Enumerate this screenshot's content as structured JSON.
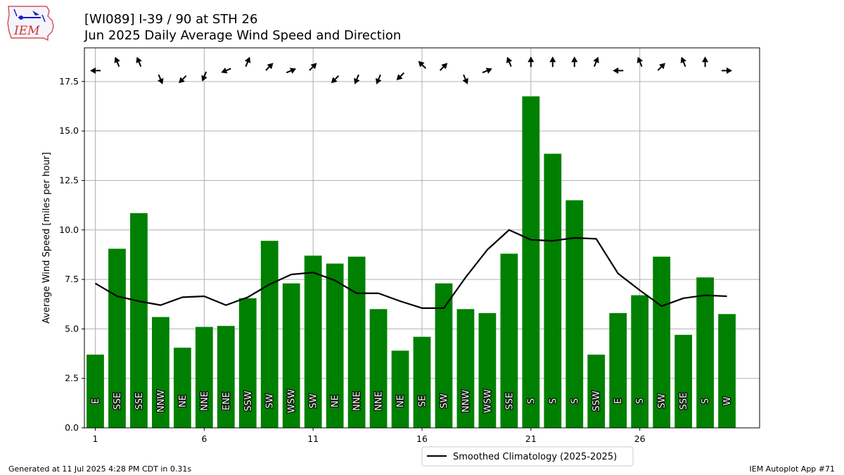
{
  "header": {
    "title_line1": "[WI089] I-39 / 90 at STH 26",
    "title_line2": "Jun 2025 Daily Average Wind Speed and Direction",
    "logo_text": "IEM"
  },
  "footer": {
    "generated": "Generated at 11 Jul 2025 4:28 PM CDT in 0.31s",
    "app": "IEM Autoplot App #71"
  },
  "colors": {
    "bar": "#008000",
    "line": "#000000",
    "grid": "#b0b0b0",
    "logo": "#cc3333"
  },
  "chart_data": {
    "type": "bar",
    "ylabel": "Average Wind Speed [miles per hour]",
    "ylim": [
      0,
      19.2
    ],
    "xlim": [
      0.5,
      31.5
    ],
    "x_ticks": [
      1,
      6,
      11,
      16,
      21,
      26
    ],
    "y_ticks": [
      "0.0",
      "2.5",
      "5.0",
      "7.5",
      "10.0",
      "12.5",
      "15.0",
      "17.5"
    ],
    "grid": true,
    "legend_position": "bottom-center",
    "days": [
      1,
      2,
      3,
      4,
      5,
      6,
      7,
      8,
      9,
      10,
      11,
      12,
      13,
      14,
      15,
      16,
      17,
      18,
      19,
      20,
      21,
      22,
      23,
      24,
      25,
      26,
      27,
      28,
      29,
      30
    ],
    "series": [
      {
        "values": [
          3.7,
          9.05,
          10.85,
          5.6,
          4.05,
          5.1,
          5.15,
          6.55,
          9.45,
          7.3,
          8.7,
          8.3,
          8.65,
          6.0,
          3.9,
          4.6,
          7.3,
          6.0,
          5.8,
          8.8,
          16.75,
          13.85,
          11.5,
          3.7,
          5.8,
          6.7,
          8.65,
          4.7,
          7.6,
          5.75
        ],
        "direction_labels": [
          "E",
          "SSE",
          "SSE",
          "NNW",
          "NE",
          "NNE",
          "ENE",
          "SSW",
          "SW",
          "WSW",
          "SW",
          "NE",
          "NNE",
          "NNE",
          "NE",
          "SE",
          "SW",
          "NNW",
          "WSW",
          "SSE",
          "S",
          "S",
          "S",
          "SSW",
          "E",
          "S",
          "SW",
          "SSE",
          "S",
          "W"
        ]
      },
      {
        "name": "Smoothed Climatology (2025-2025)",
        "values": [
          7.3,
          6.65,
          6.4,
          6.2,
          6.6,
          6.65,
          6.2,
          6.6,
          7.25,
          7.75,
          7.85,
          7.45,
          6.8,
          6.8,
          6.4,
          6.05,
          6.05,
          7.6,
          9.0,
          10.0,
          9.5,
          9.45,
          9.6,
          9.55,
          7.8,
          6.95,
          6.15,
          6.55,
          6.7,
          6.65
        ]
      }
    ],
    "arrows": [
      {
        "dir": 90,
        "offset": 0
      },
      {
        "dir": 157.5,
        "offset": 0.45
      },
      {
        "dir": 157.5,
        "offset": 0.45
      },
      {
        "dir": 337.5,
        "offset": -0.45
      },
      {
        "dir": 45,
        "offset": -0.45
      },
      {
        "dir": 22.5,
        "offset": -0.3
      },
      {
        "dir": 67.5,
        "offset": 0
      },
      {
        "dir": 202.5,
        "offset": 0.45
      },
      {
        "dir": 225,
        "offset": 0.2
      },
      {
        "dir": 247.5,
        "offset": 0
      },
      {
        "dir": 225,
        "offset": 0.2
      },
      {
        "dir": 45,
        "offset": -0.45
      },
      {
        "dir": 22.5,
        "offset": -0.45
      },
      {
        "dir": 22.5,
        "offset": -0.45
      },
      {
        "dir": 45,
        "offset": -0.3
      },
      {
        "dir": 135,
        "offset": 0.3
      },
      {
        "dir": 225,
        "offset": 0.2
      },
      {
        "dir": 337.5,
        "offset": -0.45
      },
      {
        "dir": 247.5,
        "offset": 0
      },
      {
        "dir": 157.5,
        "offset": 0.45
      },
      {
        "dir": 180,
        "offset": 0.45
      },
      {
        "dir": 180,
        "offset": 0.45
      },
      {
        "dir": 180,
        "offset": 0.45
      },
      {
        "dir": 202.5,
        "offset": 0.45
      },
      {
        "dir": 90,
        "offset": 0
      },
      {
        "dir": 157.5,
        "offset": 0.45
      },
      {
        "dir": 225,
        "offset": 0.2
      },
      {
        "dir": 157.5,
        "offset": 0.45
      },
      {
        "dir": 180,
        "offset": 0.45
      },
      {
        "dir": 270,
        "offset": 0
      }
    ]
  }
}
